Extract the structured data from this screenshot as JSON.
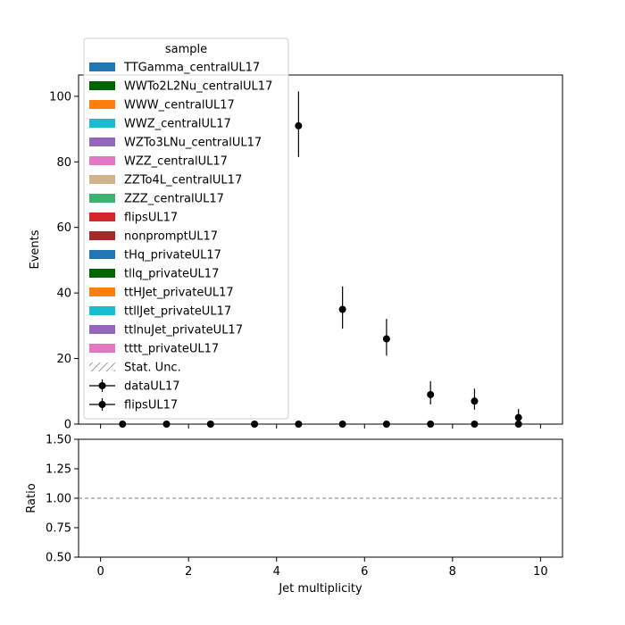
{
  "chart_data": [
    {
      "type": "scatter",
      "panel": "main",
      "ylabel": "Events",
      "xlim": [
        -0.5,
        10.5
      ],
      "ylim": [
        0,
        106.5
      ],
      "yticks": [
        0,
        20,
        40,
        60,
        80,
        100
      ],
      "ytick_labels": [
        "0",
        "20",
        "40",
        "60",
        "80",
        "100"
      ],
      "xticks": [
        0,
        2,
        4,
        6,
        8,
        10
      ],
      "grid": false,
      "legend": {
        "title": "sample",
        "placement": "upper-left",
        "entries": [
          {
            "label": "TTGamma_centralUL17",
            "kind": "patch",
            "color": "#1f77b4"
          },
          {
            "label": "WWTo2L2Nu_centralUL17",
            "kind": "patch",
            "color": "#006400"
          },
          {
            "label": "WWW_centralUL17",
            "kind": "patch",
            "color": "#ff7f0e"
          },
          {
            "label": "WWZ_centralUL17",
            "kind": "patch",
            "color": "#17becf"
          },
          {
            "label": "WZTo3LNu_centralUL17",
            "kind": "patch",
            "color": "#9467bd"
          },
          {
            "label": "WZZ_centralUL17",
            "kind": "patch",
            "color": "#e377c2"
          },
          {
            "label": "ZZTo4L_centralUL17",
            "kind": "patch",
            "color": "#d2b48c"
          },
          {
            "label": "ZZZ_centralUL17",
            "kind": "patch",
            "color": "#3cb371"
          },
          {
            "label": "flipsUL17",
            "kind": "patch",
            "color": "#d62728"
          },
          {
            "label": "nonpromptUL17",
            "kind": "patch",
            "color": "#a52a2a"
          },
          {
            "label": "tHq_privateUL17",
            "kind": "patch",
            "color": "#1f77b4"
          },
          {
            "label": "tllq_privateUL17",
            "kind": "patch",
            "color": "#006400"
          },
          {
            "label": "ttHJet_privateUL17",
            "kind": "patch",
            "color": "#ff7f0e"
          },
          {
            "label": "ttllJet_privateUL17",
            "kind": "patch",
            "color": "#17becf"
          },
          {
            "label": "ttlnuJet_privateUL17",
            "kind": "patch",
            "color": "#9467bd"
          },
          {
            "label": "tttt_privateUL17",
            "kind": "patch",
            "color": "#e377c2"
          },
          {
            "label": "Stat. Unc.",
            "kind": "hatch",
            "color": "#808080"
          },
          {
            "label": "dataUL17",
            "kind": "errorbar",
            "color": "#000000"
          },
          {
            "label": "flipsUL17",
            "kind": "errorbar",
            "color": "#000000"
          }
        ]
      },
      "series": [
        {
          "name": "dataUL17",
          "x": [
            4.5,
            5.5,
            6.5,
            7.5,
            8.5,
            9.5
          ],
          "y": [
            91,
            35,
            26,
            9,
            7,
            2
          ],
          "yerr_low": [
            9.5,
            5.9,
            5.1,
            3.0,
            2.6,
            1.4
          ],
          "yerr_high": [
            10.5,
            7.0,
            6.1,
            4.1,
            3.8,
            2.6
          ]
        },
        {
          "name": "flipsUL17",
          "x": [
            0.5,
            1.5,
            2.5,
            3.5,
            4.5,
            5.5,
            6.5,
            7.5,
            8.5,
            9.5
          ],
          "y": [
            0,
            0,
            0,
            0,
            0,
            0,
            0,
            0,
            0,
            0
          ]
        }
      ]
    },
    {
      "type": "line",
      "panel": "ratio",
      "ylabel": "Ratio",
      "xlabel": "Jet multiplicity",
      "xlim": [
        -0.5,
        10.5
      ],
      "ylim": [
        0.5,
        1.5
      ],
      "yticks": [
        0.5,
        0.75,
        1.0,
        1.25,
        1.5
      ],
      "ytick_labels": [
        "0.50",
        "0.75",
        "1.00",
        "1.25",
        "1.50"
      ],
      "xticks": [
        0,
        2,
        4,
        6,
        8,
        10
      ],
      "xtick_labels": [
        "0",
        "2",
        "4",
        "6",
        "8",
        "10"
      ],
      "reference_line": {
        "y": 1.0,
        "style": "dashed",
        "color": "#808080"
      },
      "grid": false
    }
  ]
}
